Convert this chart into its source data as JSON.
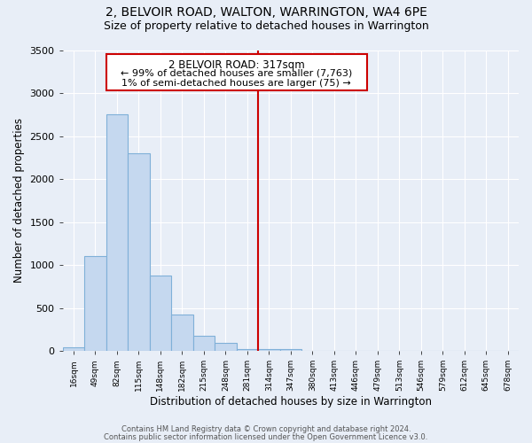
{
  "title": "2, BELVOIR ROAD, WALTON, WARRINGTON, WA4 6PE",
  "subtitle": "Size of property relative to detached houses in Warrington",
  "xlabel": "Distribution of detached houses by size in Warrington",
  "ylabel": "Number of detached properties",
  "categories": [
    "16sqm",
    "49sqm",
    "82sqm",
    "115sqm",
    "148sqm",
    "182sqm",
    "215sqm",
    "248sqm",
    "281sqm",
    "314sqm",
    "347sqm",
    "380sqm",
    "413sqm",
    "446sqm",
    "479sqm",
    "513sqm",
    "546sqm",
    "579sqm",
    "612sqm",
    "645sqm",
    "678sqm"
  ],
  "values": [
    40,
    1100,
    2750,
    2300,
    875,
    425,
    175,
    90,
    20,
    20,
    20,
    5,
    0,
    0,
    0,
    0,
    0,
    0,
    0,
    0,
    0
  ],
  "bar_color": "#c5d8ef",
  "bar_edge_color": "#7fb0d8",
  "vline_x_index": 9,
  "vline_color": "#cc0000",
  "annotation_title": "2 BELVOIR ROAD: 317sqm",
  "annotation_line1": "← 99% of detached houses are smaller (7,763)",
  "annotation_line2": "1% of semi-detached houses are larger (75) →",
  "ylim": [
    0,
    3500
  ],
  "yticks": [
    0,
    500,
    1000,
    1500,
    2000,
    2500,
    3000,
    3500
  ],
  "bg_color": "#e8eef7",
  "plot_bg_color": "#e8eef7",
  "footer1": "Contains HM Land Registry data © Crown copyright and database right 2024.",
  "footer2": "Contains public sector information licensed under the Open Government Licence v3.0.",
  "title_fontsize": 10,
  "subtitle_fontsize": 9
}
